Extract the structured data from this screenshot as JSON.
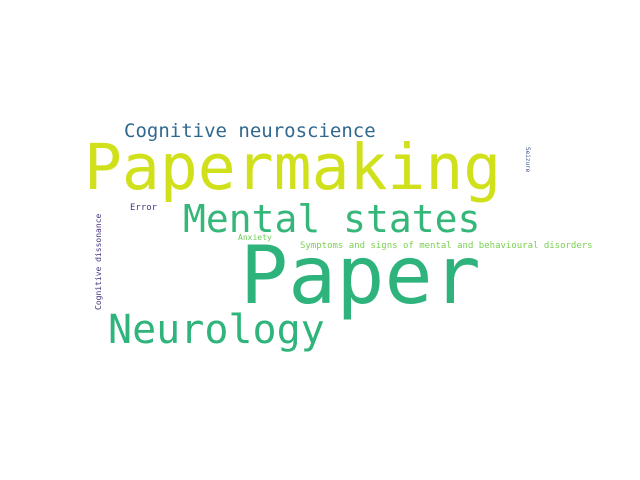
{
  "words": [
    {
      "key": "papermaking",
      "text": "Papermaking",
      "color": "#D0E11C"
    },
    {
      "key": "paper",
      "text": "Paper",
      "color": "#2EB37C"
    },
    {
      "key": "mental_states",
      "text": "Mental states",
      "color": "#35B779"
    },
    {
      "key": "neurology",
      "text": "Neurology",
      "color": "#2FB47C"
    },
    {
      "key": "cognitive_neuroscience",
      "text": "Cognitive neuroscience",
      "color": "#31688E"
    },
    {
      "key": "symptoms",
      "text": "Symptoms and signs of mental and behavioural disorders",
      "color": "#7AD151"
    },
    {
      "key": "error",
      "text": "Error",
      "color": "#443A83"
    },
    {
      "key": "anxiety",
      "text": "Anxiety",
      "color": "#6CCD5A"
    },
    {
      "key": "cognitive_dissonance",
      "text": "Cognitive dissonance",
      "color": "#46327E"
    },
    {
      "key": "seizure",
      "text": "Seizure",
      "color": "#3B528B"
    }
  ]
}
